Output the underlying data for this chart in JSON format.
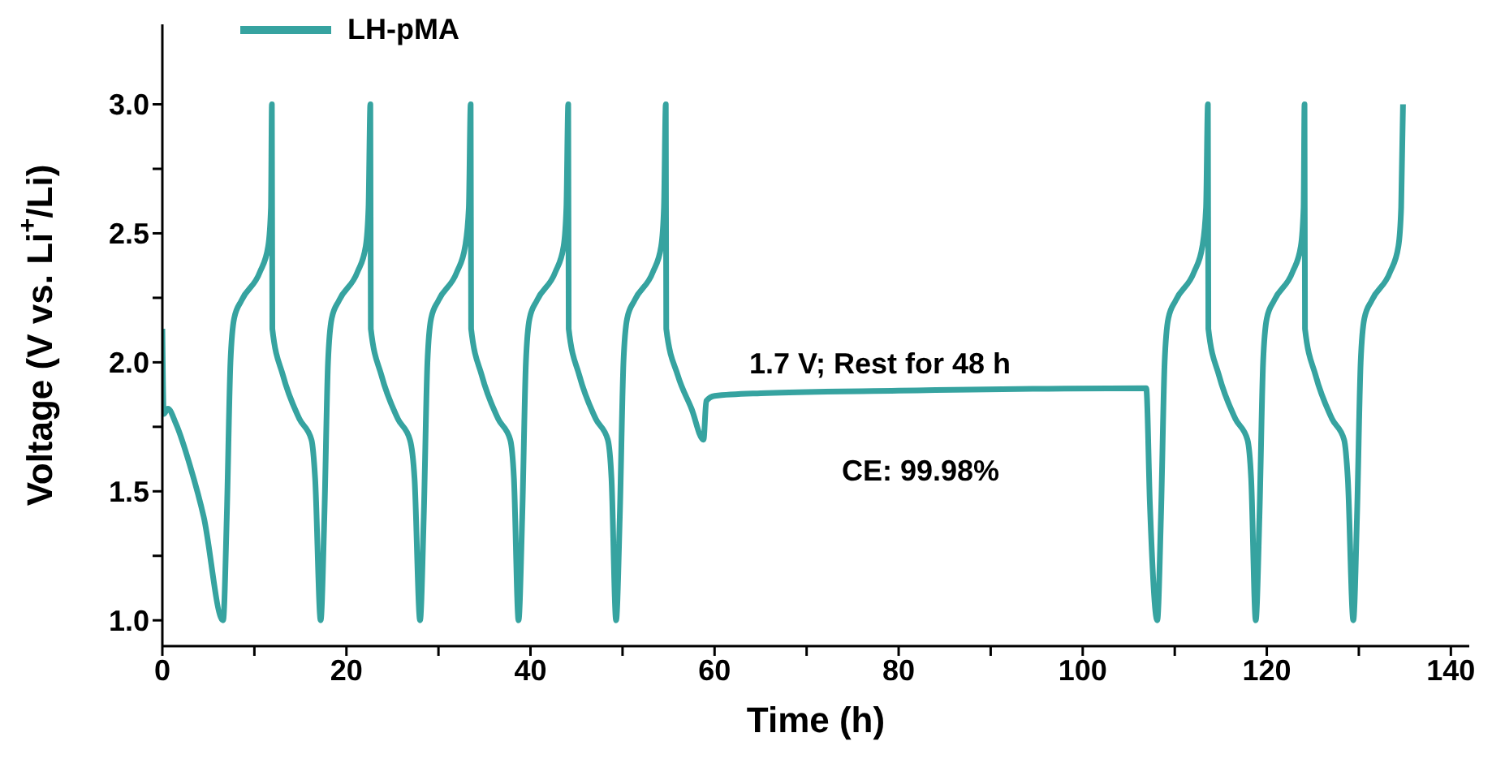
{
  "chart_data": {
    "type": "line",
    "xlabel": "Time (h)",
    "ylabel": "Voltage (V vs. Li$^{+}$/Li)",
    "xlim": [
      0,
      142
    ],
    "ylim": [
      0.9,
      3.31
    ],
    "xticks": [
      0,
      {
        "value": 10,
        "label": null
      },
      20,
      {
        "value": 30,
        "label": null
      },
      40,
      {
        "value": 50,
        "label": null
      },
      60,
      {
        "value": 70,
        "label": null
      },
      80,
      {
        "value": 90,
        "label": null
      },
      100,
      {
        "value": 110,
        "label": null
      },
      120,
      {
        "value": 130,
        "label": null
      },
      140
    ],
    "yticks": [
      {
        "value": 1,
        "label": "1.0"
      },
      {
        "value": 1.25,
        "label": null
      },
      {
        "value": 1.5,
        "label": "1.5"
      },
      {
        "value": 1.75,
        "label": null
      },
      {
        "value": 2,
        "label": "2.0"
      },
      {
        "value": 2.25,
        "label": null
      },
      {
        "value": 2.5,
        "label": "2.5"
      },
      {
        "value": 2.75,
        "label": null
      },
      {
        "value": 3,
        "label": "3.0"
      }
    ],
    "grid": false,
    "legend": "top left",
    "marker": "none",
    "line_style": "solid",
    "annotations": [
      "1.7 V; Rest for 48 h",
      "CE: 99.98%"
    ],
    "series": [
      {
        "name": "LH-pMA",
        "color": "#36a3a0",
        "x": [
          0,
          0.15,
          0.6,
          1.5,
          3,
          4.5,
          6.6,
          7.0,
          7.4,
          7.8,
          8.6,
          10.6,
          11.5,
          11.8,
          11.9,
          11.95,
          13.1,
          14.9,
          16.2,
          16.6,
          17.2,
          17.6,
          18.0,
          18.4,
          19.2,
          21.2,
          22.1,
          22.4,
          22.6,
          22.65,
          23.8,
          25.6,
          26.9,
          27.4,
          28.0,
          28.4,
          28.8,
          29.2,
          30.0,
          32.0,
          32.9,
          33.3,
          33.5,
          33.55,
          34.7,
          36.5,
          37.8,
          38.2,
          38.7,
          39.1,
          39.5,
          39.9,
          40.7,
          42.7,
          43.6,
          43.9,
          44.1,
          44.15,
          45.3,
          47.1,
          48.4,
          48.8,
          49.3,
          49.7,
          50.1,
          50.5,
          51.3,
          53.3,
          54.2,
          54.5,
          54.7,
          54.75,
          56,
          57.5,
          58.8,
          59.1,
          60,
          65,
          80,
          106.9,
          107.3,
          108.1,
          108.5,
          108.9,
          109.3,
          110.1,
          112.1,
          113.0,
          113.4,
          113.6,
          113.65,
          114.8,
          116.6,
          117.9,
          118.3,
          118.8,
          119.2,
          119.6,
          120,
          120.8,
          122.8,
          123.7,
          124,
          124.1,
          124.15,
          125.3,
          127.1,
          128.4,
          128.8,
          129.4,
          129.8,
          130.2,
          130.6,
          131.4,
          133.4,
          134.3,
          134.6,
          134.8
        ],
        "values": [
          2.13,
          1.8,
          1.82,
          1.76,
          1.6,
          1.4,
          1.0,
          1.4,
          2.0,
          2.17,
          2.24,
          2.35,
          2.45,
          2.6,
          3.0,
          2.13,
          1.95,
          1.78,
          1.7,
          1.55,
          1.0,
          1.4,
          2.0,
          2.17,
          2.24,
          2.35,
          2.45,
          2.6,
          3.0,
          2.13,
          1.95,
          1.78,
          1.7,
          1.55,
          1.0,
          1.4,
          2.0,
          2.17,
          2.24,
          2.35,
          2.45,
          2.6,
          3.0,
          2.13,
          1.95,
          1.78,
          1.7,
          1.55,
          1.0,
          1.4,
          2.0,
          2.17,
          2.24,
          2.35,
          2.45,
          2.6,
          3.0,
          2.13,
          1.95,
          1.78,
          1.7,
          1.55,
          1.0,
          1.4,
          2.0,
          2.17,
          2.24,
          2.35,
          2.45,
          2.6,
          3.0,
          2.13,
          1.95,
          1.82,
          1.7,
          1.85,
          1.87,
          1.88,
          1.89,
          1.9,
          1.45,
          1.0,
          1.4,
          2.0,
          2.17,
          2.24,
          2.35,
          2.45,
          2.6,
          3.0,
          2.13,
          1.95,
          1.78,
          1.7,
          1.55,
          1.0,
          1.4,
          2.0,
          2.17,
          2.24,
          2.35,
          2.45,
          2.6,
          3.0,
          2.13,
          1.95,
          1.78,
          1.7,
          1.55,
          1.0,
          1.4,
          2.0,
          2.17,
          2.24,
          2.35,
          2.45,
          2.6,
          3.0
        ]
      }
    ]
  }
}
